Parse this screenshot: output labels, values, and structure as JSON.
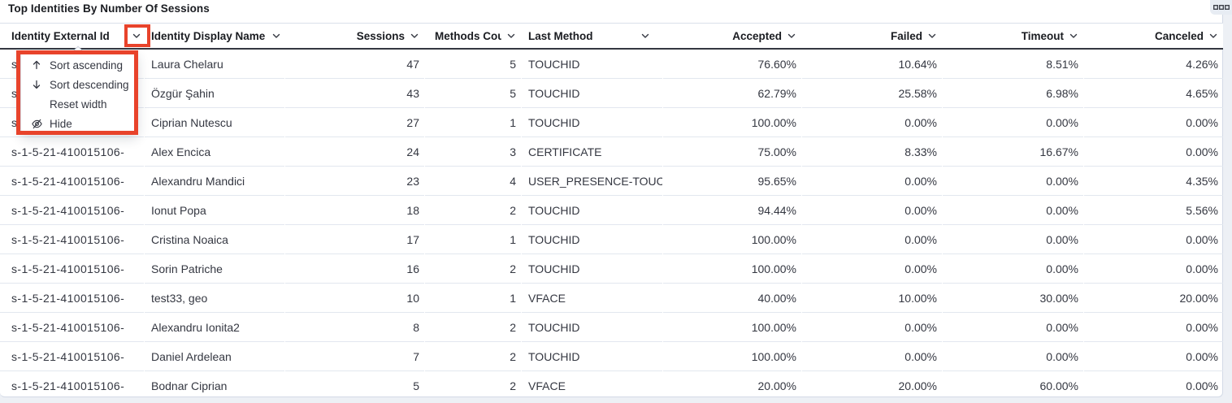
{
  "panel": {
    "title": "Top Identities By Number Of Sessions"
  },
  "table": {
    "columns": [
      {
        "id": "identity-external-id",
        "label": "Identity External Id",
        "align": "left"
      },
      {
        "id": "identity-display-name",
        "label": "Identity Display Name",
        "align": "left"
      },
      {
        "id": "sessions",
        "label": "Sessions",
        "align": "right"
      },
      {
        "id": "methods-count",
        "label": "Methods Count",
        "align": "right"
      },
      {
        "id": "last-method",
        "label": "Last Method",
        "align": "left"
      },
      {
        "id": "accepted",
        "label": "Accepted",
        "align": "right"
      },
      {
        "id": "failed",
        "label": "Failed",
        "align": "right"
      },
      {
        "id": "timeout",
        "label": "Timeout",
        "align": "right"
      },
      {
        "id": "canceled",
        "label": "Canceled",
        "align": "right"
      }
    ],
    "rows": [
      [
        "s-1-5-21-410015106-",
        "Laura Chelaru",
        "47",
        "5",
        "TOUCHID",
        "76.60%",
        "10.64%",
        "8.51%",
        "4.26%"
      ],
      [
        "s-1-5-21-410015106-",
        "Özgür Şahin",
        "43",
        "5",
        "TOUCHID",
        "62.79%",
        "25.58%",
        "6.98%",
        "4.65%"
      ],
      [
        "s-1-5-21-410015106-",
        "Ciprian Nutescu",
        "27",
        "1",
        "TOUCHID",
        "100.00%",
        "0.00%",
        "0.00%",
        "0.00%"
      ],
      [
        "s-1-5-21-410015106-",
        "Alex Encica",
        "24",
        "3",
        "CERTIFICATE",
        "75.00%",
        "8.33%",
        "16.67%",
        "0.00%"
      ],
      [
        "s-1-5-21-410015106-",
        "Alexandru Mandici",
        "23",
        "4",
        "USER_PRESENCE-TOUC",
        "95.65%",
        "0.00%",
        "0.00%",
        "4.35%"
      ],
      [
        "s-1-5-21-410015106-",
        "Ionut Popa",
        "18",
        "2",
        "TOUCHID",
        "94.44%",
        "0.00%",
        "0.00%",
        "5.56%"
      ],
      [
        "s-1-5-21-410015106-",
        "Cristina Noaica",
        "17",
        "1",
        "TOUCHID",
        "100.00%",
        "0.00%",
        "0.00%",
        "0.00%"
      ],
      [
        "s-1-5-21-410015106-",
        "Sorin Patriche",
        "16",
        "2",
        "TOUCHID",
        "100.00%",
        "0.00%",
        "0.00%",
        "0.00%"
      ],
      [
        "s-1-5-21-410015106-",
        "test33, geo",
        "10",
        "1",
        "VFACE",
        "40.00%",
        "10.00%",
        "30.00%",
        "20.00%"
      ],
      [
        "s-1-5-21-410015106-",
        "Alexandru Ionita2",
        "8",
        "2",
        "TOUCHID",
        "100.00%",
        "0.00%",
        "0.00%",
        "0.00%"
      ],
      [
        "s-1-5-21-410015106-",
        "Daniel Ardelean",
        "7",
        "2",
        "TOUCHID",
        "100.00%",
        "0.00%",
        "0.00%",
        "0.00%"
      ],
      [
        "s-1-5-21-410015106-",
        "Bodnar Ciprian",
        "5",
        "2",
        "VFACE",
        "20.00%",
        "20.00%",
        "60.00%",
        "0.00%"
      ]
    ]
  },
  "column_menu": {
    "open_for_column": "Identity External Id",
    "items": [
      {
        "label": "Sort ascending",
        "icon": "arrow-up-icon"
      },
      {
        "label": "Sort descending",
        "icon": "arrow-down-icon"
      },
      {
        "label": "Reset width",
        "icon": null
      },
      {
        "label": "Hide",
        "icon": "eye-off-icon"
      }
    ]
  },
  "annotations": {
    "highlight_color": "#e8432b"
  },
  "colors": {
    "header_underline": "#343741",
    "panel_border": "#d3dae6",
    "row_divider": "#e2e7ef",
    "text": "#343741",
    "heading_text": "#1a1c21",
    "page_background": "#edf0f5",
    "options_button_background": "#e7ecf3"
  }
}
